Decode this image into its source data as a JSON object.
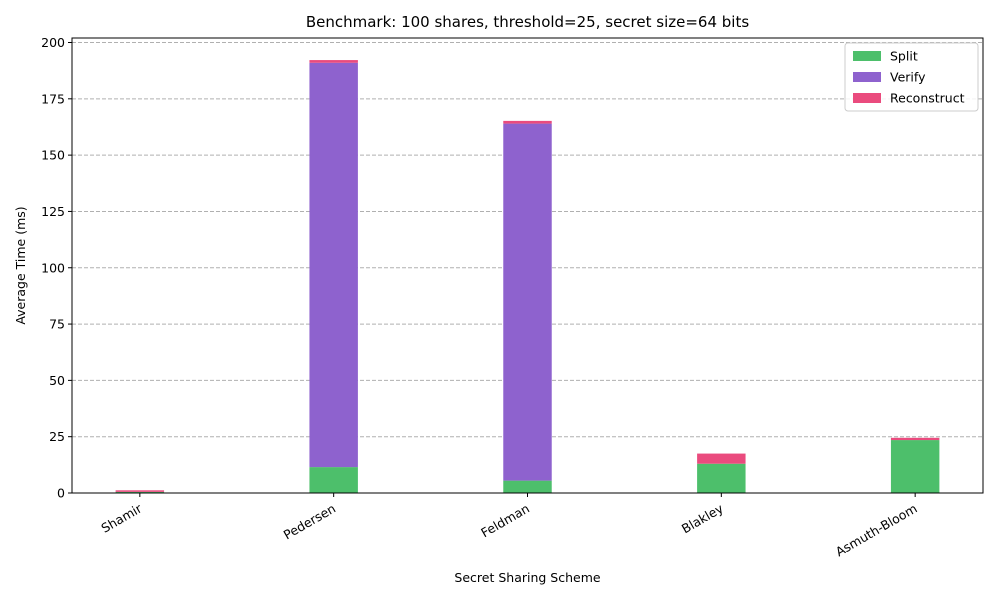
{
  "chart_data": {
    "type": "bar",
    "stacked": true,
    "title": "Benchmark: 100 shares, threshold=25, secret size=64 bits",
    "xlabel": "Secret Sharing Scheme",
    "ylabel": "Average Time (ms)",
    "ylim": [
      0,
      202
    ],
    "yticks": [
      0,
      25,
      50,
      75,
      100,
      125,
      150,
      175,
      200
    ],
    "grid": true,
    "legend_position": "top-right",
    "categories": [
      "Shamir",
      "Pedersen",
      "Feldman",
      "Blakley",
      "Asmuth-Bloom"
    ],
    "series": [
      {
        "name": "Split",
        "color": "#4dbf6b",
        "values": [
          0.5,
          11.5,
          5.5,
          13.0,
          23.5
        ]
      },
      {
        "name": "Verify",
        "color": "#8e62ce",
        "values": [
          0.0,
          179.5,
          158.5,
          0.0,
          0.0
        ]
      },
      {
        "name": "Reconstruct",
        "color": "#ea4b7e",
        "values": [
          0.7,
          1.2,
          1.2,
          4.5,
          1.0
        ]
      }
    ]
  }
}
